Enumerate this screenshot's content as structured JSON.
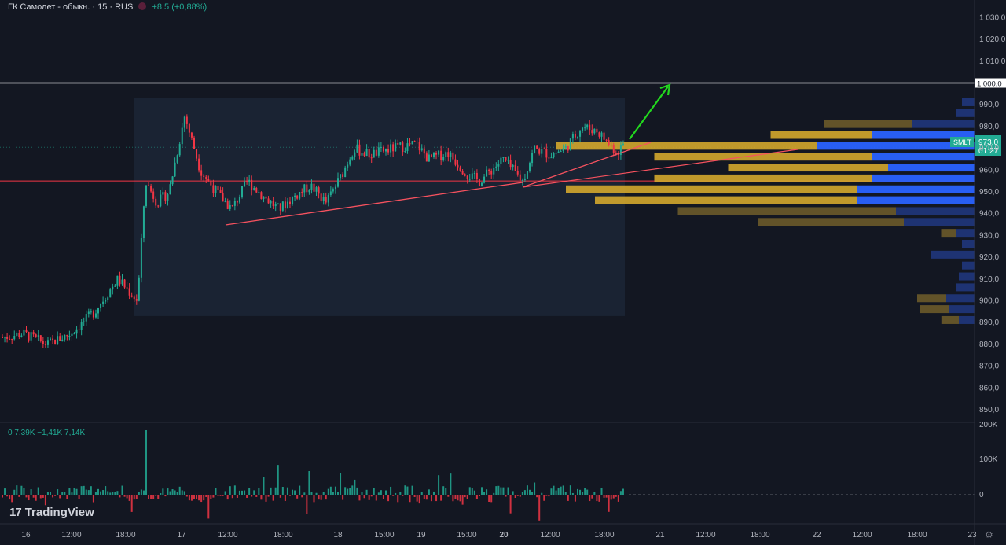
{
  "header": {
    "symbol": "ГК Самолет - обыкн. · 15 · RUS",
    "change": "+8,5 (+0,88%)"
  },
  "volume_header": "0  7,39K  −1,41K  7,14K",
  "branding": {
    "logo_mark": "17",
    "logo_text": "TradingView"
  },
  "price_tag": {
    "ticker": "SMLT",
    "price": "973,0",
    "countdown": "01:27"
  },
  "level_tag": "1 000,0",
  "colors": {
    "up": "#22ab94",
    "down": "#f23645",
    "level_line": "#f23645",
    "trend_line": "#f7525f",
    "arrow": "#22d81e",
    "box": "#1c2636",
    "vp_up": "#d4a72c",
    "vp_down": "#2962ff"
  },
  "chart_data": {
    "type": "candlestick",
    "x_axis_labels": [
      "16",
      "12:00",
      "18:00",
      "17",
      "12:00",
      "18:00",
      "18",
      "15:00",
      "19",
      "15:00",
      "20",
      "12:00",
      "18:00",
      "21",
      "12:00",
      "18:00",
      "22",
      "12:00",
      "18:00",
      "23"
    ],
    "price_ticks": [
      "1 030,0",
      "1 020,0",
      "1 010,0",
      "1 000,0",
      "990,0",
      "980,0",
      "970,0",
      "960,0",
      "950,0",
      "940,0",
      "930,0",
      "920,0",
      "910,0",
      "900,0",
      "890,0",
      "880,0",
      "870,0",
      "860,0",
      "850,0"
    ],
    "volume_ticks": [
      "200K",
      "100K",
      "0"
    ],
    "ylim": [
      845,
      1033
    ],
    "close_path": [
      [
        0,
        883
      ],
      [
        30,
        885
      ],
      [
        60,
        880
      ],
      [
        90,
        885
      ],
      [
        120,
        895
      ],
      [
        150,
        910
      ],
      [
        175,
        900
      ],
      [
        185,
        955
      ],
      [
        200,
        945
      ],
      [
        215,
        950
      ],
      [
        235,
        985
      ],
      [
        255,
        960
      ],
      [
        275,
        950
      ],
      [
        295,
        942
      ],
      [
        315,
        955
      ],
      [
        335,
        948
      ],
      [
        355,
        942
      ],
      [
        375,
        948
      ],
      [
        395,
        953
      ],
      [
        415,
        945
      ],
      [
        435,
        958
      ],
      [
        450,
        970
      ],
      [
        470,
        967
      ],
      [
        500,
        970
      ],
      [
        530,
        972
      ],
      [
        545,
        965
      ],
      [
        570,
        968
      ],
      [
        595,
        958
      ],
      [
        610,
        955
      ],
      [
        640,
        965
      ],
      [
        665,
        955
      ],
      [
        680,
        970
      ],
      [
        700,
        967
      ],
      [
        720,
        970
      ],
      [
        740,
        980
      ],
      [
        760,
        978
      ],
      [
        785,
        968
      ],
      [
        795,
        973
      ]
    ],
    "level_1000": 1000,
    "support_level": 955,
    "consolidation_box": {
      "x_from": 170,
      "x_to": 795,
      "price_from": 893,
      "price_to": 993
    },
    "volume_profile_rows": [
      {
        "price": 990,
        "up": 0,
        "down": 0.08
      },
      {
        "price": 985,
        "up": 0,
        "down": 0.12
      },
      {
        "price": 980,
        "up": 0.3,
        "down": 0.4
      },
      {
        "price": 975,
        "up": 0.35,
        "down": 0.65
      },
      {
        "price": 970,
        "up": 0.9,
        "down": 1.0
      },
      {
        "price": 965,
        "up": 0.75,
        "down": 0.65
      },
      {
        "price": 960,
        "up": 0.55,
        "down": 0.55
      },
      {
        "price": 955,
        "up": 0.75,
        "down": 0.65
      },
      {
        "price": 950,
        "up": 1.0,
        "down": 0.75
      },
      {
        "price": 945,
        "up": 0.9,
        "down": 0.75
      },
      {
        "price": 940,
        "up": 0.75,
        "down": 0.5
      },
      {
        "price": 935,
        "up": 0.5,
        "down": 0.45
      },
      {
        "price": 930,
        "up": 0.05,
        "down": 0.12
      },
      {
        "price": 925,
        "up": 0,
        "down": 0.08
      },
      {
        "price": 920,
        "up": 0,
        "down": 0.28
      },
      {
        "price": 915,
        "up": 0,
        "down": 0.08
      },
      {
        "price": 910,
        "up": 0,
        "down": 0.1
      },
      {
        "price": 905,
        "up": 0,
        "down": 0.12
      },
      {
        "price": 900,
        "up": 0.1,
        "down": 0.18
      },
      {
        "price": 895,
        "up": 0.1,
        "down": 0.16
      },
      {
        "price": 890,
        "up": 0.06,
        "down": 0.1
      }
    ]
  }
}
